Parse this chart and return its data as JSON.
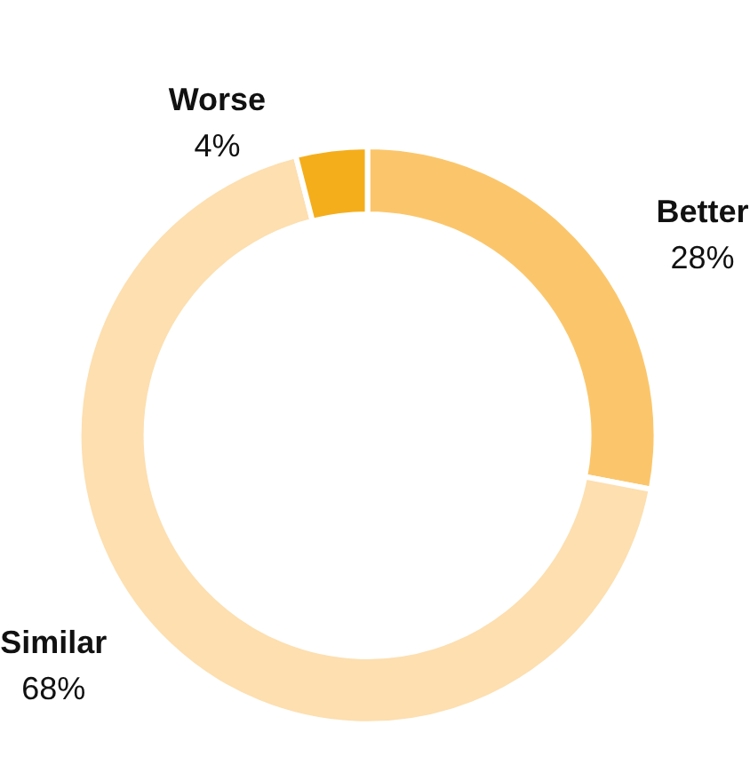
{
  "chart_data": {
    "type": "donut",
    "categories": [
      "Better",
      "Similar",
      "Worse"
    ],
    "values": [
      28,
      68,
      4
    ],
    "value_labels": [
      "28%",
      "68%",
      "4%"
    ],
    "colors": [
      "#fbc66b",
      "#fddfb0",
      "#f5ae1b"
    ],
    "legend": false
  }
}
